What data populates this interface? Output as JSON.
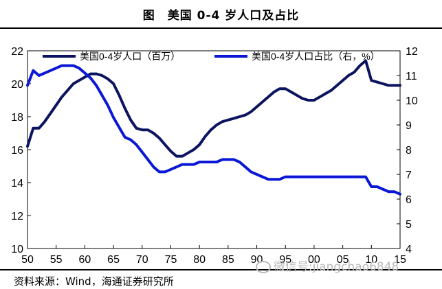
{
  "title": "图　美国 0-4 岁人口及占比",
  "source": "资料来源：Wind，海通证券研究所",
  "watermark": "微信号:jiangchao6848",
  "colors": {
    "left_series": "#0c1460",
    "right_series": "#0a18d6"
  },
  "chart_data": {
    "type": "line",
    "x_tick_labels": [
      "50",
      "55",
      "60",
      "65",
      "70",
      "75",
      "80",
      "85",
      "90",
      "95",
      "00",
      "05",
      "10",
      "15"
    ],
    "x_range": [
      1950,
      2015
    ],
    "y_left": {
      "min": 10,
      "max": 22,
      "ticks": [
        10,
        12,
        14,
        16,
        18,
        20,
        22
      ]
    },
    "y_right": {
      "min": 4,
      "max": 12,
      "ticks": [
        4,
        5,
        6,
        7,
        8,
        9,
        10,
        11,
        12
      ]
    },
    "legend_position": "top",
    "series": [
      {
        "name": "美国0-4岁人口（百万）",
        "axis": "left",
        "x": [
          1950,
          1951,
          1952,
          1953,
          1954,
          1955,
          1956,
          1957,
          1958,
          1959,
          1960,
          1961,
          1962,
          1963,
          1964,
          1965,
          1966,
          1967,
          1968,
          1969,
          1970,
          1971,
          1972,
          1973,
          1974,
          1975,
          1976,
          1977,
          1978,
          1979,
          1980,
          1981,
          1982,
          1983,
          1984,
          1985,
          1986,
          1987,
          1988,
          1989,
          1990,
          1991,
          1992,
          1993,
          1994,
          1995,
          1996,
          1997,
          1998,
          1999,
          2000,
          2001,
          2002,
          2003,
          2004,
          2005,
          2006,
          2007,
          2008,
          2009,
          2010,
          2011,
          2012,
          2013,
          2014,
          2015
        ],
        "y": [
          16.2,
          17.3,
          17.3,
          17.7,
          18.2,
          18.7,
          19.2,
          19.6,
          20.0,
          20.2,
          20.4,
          20.6,
          20.6,
          20.5,
          20.3,
          20.0,
          19.3,
          18.5,
          17.8,
          17.3,
          17.2,
          17.2,
          17.0,
          16.7,
          16.3,
          15.9,
          15.6,
          15.6,
          15.8,
          16.0,
          16.3,
          16.8,
          17.2,
          17.5,
          17.7,
          17.8,
          17.9,
          18.0,
          18.1,
          18.3,
          18.6,
          18.9,
          19.2,
          19.5,
          19.7,
          19.7,
          19.5,
          19.3,
          19.1,
          19.0,
          19.0,
          19.2,
          19.4,
          19.6,
          19.9,
          20.2,
          20.5,
          20.7,
          21.1,
          21.4,
          20.2,
          20.1,
          20.0,
          19.9,
          19.9,
          19.9
        ]
      },
      {
        "name": "美国0-4岁人口占比（右，%）",
        "axis": "right",
        "x": [
          1950,
          1951,
          1952,
          1953,
          1954,
          1955,
          1956,
          1957,
          1958,
          1959,
          1960,
          1961,
          1962,
          1963,
          1964,
          1965,
          1966,
          1967,
          1968,
          1969,
          1970,
          1971,
          1972,
          1973,
          1974,
          1975,
          1976,
          1977,
          1978,
          1979,
          1980,
          1981,
          1982,
          1983,
          1984,
          1985,
          1986,
          1987,
          1988,
          1989,
          1990,
          1991,
          1992,
          1993,
          1994,
          1995,
          1996,
          1997,
          1998,
          1999,
          2000,
          2001,
          2002,
          2003,
          2004,
          2005,
          2006,
          2007,
          2008,
          2009,
          2010,
          2011,
          2012,
          2013,
          2014,
          2015
        ],
        "y": [
          10.6,
          11.2,
          11.0,
          11.1,
          11.2,
          11.3,
          11.4,
          11.4,
          11.4,
          11.3,
          11.1,
          10.9,
          10.6,
          10.2,
          9.8,
          9.3,
          8.9,
          8.5,
          8.4,
          8.2,
          7.9,
          7.6,
          7.3,
          7.1,
          7.1,
          7.2,
          7.3,
          7.4,
          7.4,
          7.4,
          7.5,
          7.5,
          7.5,
          7.5,
          7.6,
          7.6,
          7.6,
          7.5,
          7.3,
          7.1,
          7.0,
          6.9,
          6.8,
          6.8,
          6.8,
          6.9,
          6.9,
          6.9,
          6.9,
          6.9,
          6.9,
          6.9,
          6.9,
          6.9,
          6.9,
          6.9,
          6.9,
          6.9,
          6.9,
          6.9,
          6.5,
          6.5,
          6.4,
          6.3,
          6.3,
          6.2
        ]
      }
    ]
  }
}
